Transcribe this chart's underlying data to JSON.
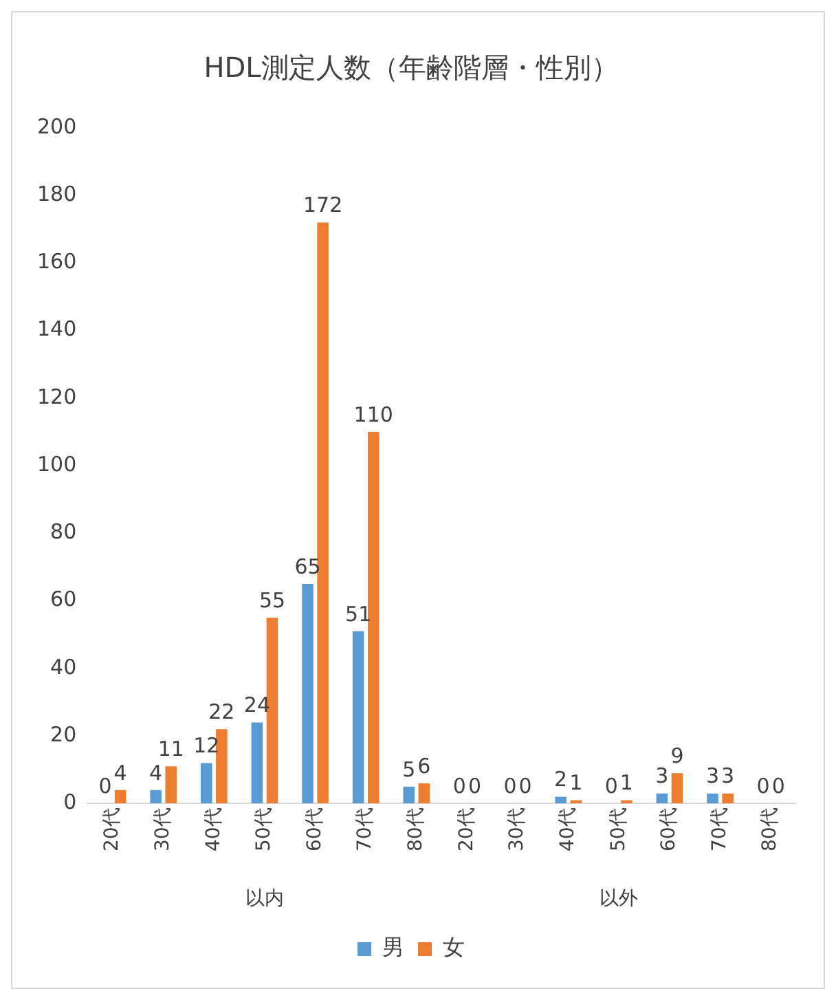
{
  "chart_data": {
    "type": "bar",
    "title": "HDL測定人数（年齢階層・性別）",
    "categories": [
      "20代",
      "30代",
      "40代",
      "50代",
      "60代",
      "70代",
      "80代",
      "20代",
      "30代",
      "40代",
      "50代",
      "60代",
      "70代",
      "80代"
    ],
    "series": [
      {
        "name": "男",
        "color": "#5b9bd5",
        "values": [
          0,
          4,
          12,
          24,
          65,
          51,
          5,
          0,
          0,
          2,
          0,
          3,
          3,
          0
        ]
      },
      {
        "name": "女",
        "color": "#ed7d31",
        "values": [
          4,
          11,
          22,
          55,
          172,
          110,
          6,
          0,
          0,
          1,
          1,
          9,
          3,
          0
        ]
      }
    ],
    "annotations": [
      "以内",
      "以外"
    ],
    "ylim": [
      0,
      200
    ],
    "yticks": [
      0,
      20,
      40,
      60,
      80,
      100,
      120,
      140,
      160,
      180,
      200
    ],
    "grid": false,
    "legend": "bottom",
    "data_labels": true
  }
}
